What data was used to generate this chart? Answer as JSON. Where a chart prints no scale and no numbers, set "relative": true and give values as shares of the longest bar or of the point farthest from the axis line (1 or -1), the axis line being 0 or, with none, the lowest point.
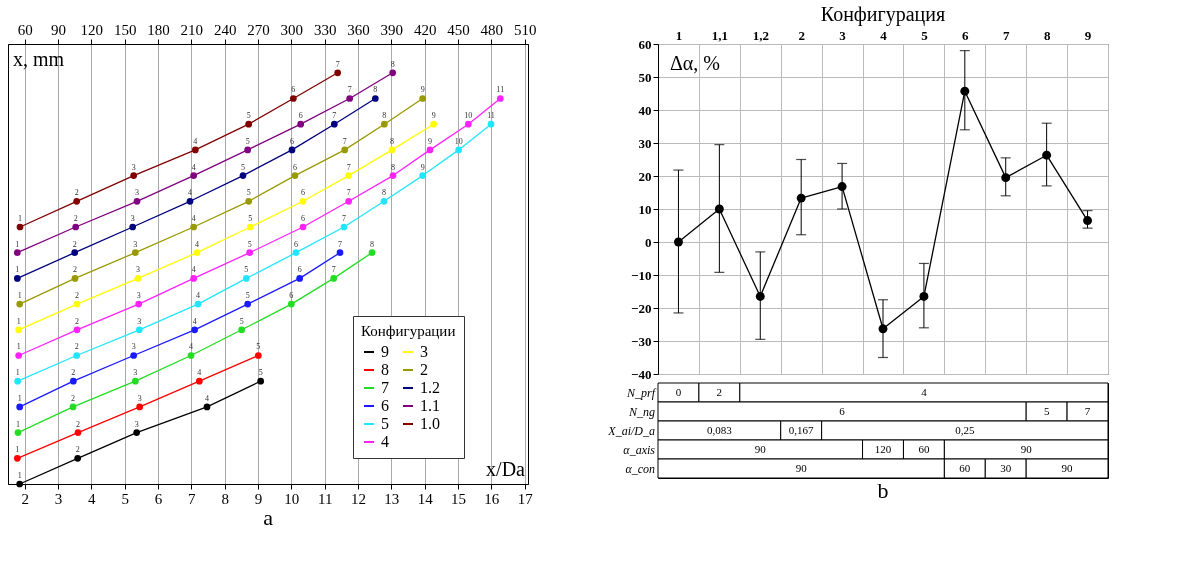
{
  "chart_data": [
    {
      "type": "line",
      "relative": true,
      "xlabel": "x/Da",
      "ylabel": "x, mm",
      "legend_title": "Конфигурации",
      "legend": "bottom right",
      "grid": "x",
      "marker": "circle",
      "line_style": "solid",
      "xlim": [
        1.5,
        17.1
      ],
      "xticks": [
        2,
        3,
        4,
        5,
        6,
        7,
        8,
        9,
        10,
        11,
        12,
        13,
        14,
        15,
        16,
        17
      ],
      "x2lim": [
        45,
        513
      ],
      "x2ticks": [
        60,
        90,
        120,
        150,
        180,
        210,
        240,
        270,
        300,
        330,
        360,
        390,
        420,
        450,
        480,
        510
      ],
      "annotations": [
        "a",
        {
          "text": "1",
          "x": 1.85,
          "y": 0
        },
        {
          "text": "2",
          "x": 3.59,
          "y": 0.0625
        },
        {
          "text": "3",
          "x": 5.36,
          "y": 0.125
        },
        {
          "text": "4",
          "x": 7.47,
          "y": 0.1875
        },
        {
          "text": "5",
          "x": 9.08,
          "y": 0.25
        },
        {
          "text": "1",
          "x": 1.78,
          "y": 0.0625
        },
        {
          "text": "2",
          "x": 3.6,
          "y": 0.125
        },
        {
          "text": "3",
          "x": 5.45,
          "y": 0.1875
        },
        {
          "text": "4",
          "x": 7.24,
          "y": 0.25
        },
        {
          "text": "5",
          "x": 9.01,
          "y": 0.3125
        },
        {
          "text": "1",
          "x": 1.8,
          "y": 0.125
        },
        {
          "text": "2",
          "x": 3.45,
          "y": 0.1875
        },
        {
          "text": "3",
          "x": 5.32,
          "y": 0.25
        },
        {
          "text": "4",
          "x": 6.99,
          "y": 0.3125
        },
        {
          "text": "5",
          "x": 8.51,
          "y": 0.375
        },
        {
          "text": "6",
          "x": 10.0,
          "y": 0.4375
        },
        {
          "text": "7",
          "x": 11.27,
          "y": 0.5
        },
        {
          "text": "8",
          "x": 12.42,
          "y": 0.5625
        },
        {
          "text": "1",
          "x": 1.85,
          "y": 0.1875
        },
        {
          "text": "2",
          "x": 3.46,
          "y": 0.25
        },
        {
          "text": "3",
          "x": 5.27,
          "y": 0.3125
        },
        {
          "text": "4",
          "x": 7.1,
          "y": 0.375
        },
        {
          "text": "5",
          "x": 8.69,
          "y": 0.4375
        },
        {
          "text": "6",
          "x": 10.25,
          "y": 0.5
        },
        {
          "text": "7",
          "x": 11.46,
          "y": 0.5625
        },
        {
          "text": "1",
          "x": 1.79,
          "y": 0.25
        },
        {
          "text": "2",
          "x": 3.56,
          "y": 0.3125
        },
        {
          "text": "3",
          "x": 5.44,
          "y": 0.375
        },
        {
          "text": "4",
          "x": 7.2,
          "y": 0.4375
        },
        {
          "text": "5",
          "x": 8.65,
          "y": 0.5
        },
        {
          "text": "6",
          "x": 10.14,
          "y": 0.5625
        },
        {
          "text": "7",
          "x": 11.58,
          "y": 0.625
        },
        {
          "text": "8",
          "x": 12.78,
          "y": 0.6875
        },
        {
          "text": "9",
          "x": 13.94,
          "y": 0.75
        },
        {
          "text": "10",
          "x": 15.02,
          "y": 0.8125
        },
        {
          "text": "11",
          "x": 15.99,
          "y": 0.875
        },
        {
          "text": "1",
          "x": 1.82,
          "y": 0.3125
        },
        {
          "text": "2",
          "x": 3.57,
          "y": 0.375
        },
        {
          "text": "3",
          "x": 5.42,
          "y": 0.4375
        },
        {
          "text": "4",
          "x": 7.07,
          "y": 0.5
        },
        {
          "text": "5",
          "x": 8.75,
          "y": 0.5625
        },
        {
          "text": "6",
          "x": 10.35,
          "y": 0.625
        },
        {
          "text": "7",
          "x": 11.72,
          "y": 0.6875
        },
        {
          "text": "8",
          "x": 13.05,
          "y": 0.75
        },
        {
          "text": "9",
          "x": 14.16,
          "y": 0.8125
        },
        {
          "text": "10",
          "x": 15.31,
          "y": 0.875
        },
        {
          "text": "11",
          "x": 16.27,
          "y": 0.9375
        },
        {
          "text": "1",
          "x": 1.82,
          "y": 0.375
        },
        {
          "text": "2",
          "x": 3.57,
          "y": 0.4375
        },
        {
          "text": "3",
          "x": 5.4,
          "y": 0.5
        },
        {
          "text": "4",
          "x": 7.17,
          "y": 0.5625
        },
        {
          "text": "5",
          "x": 8.77,
          "y": 0.625
        },
        {
          "text": "6",
          "x": 10.35,
          "y": 0.6875
        },
        {
          "text": "7",
          "x": 11.72,
          "y": 0.75
        },
        {
          "text": "8",
          "x": 13.02,
          "y": 0.8125
        },
        {
          "text": "9",
          "x": 14.27,
          "y": 0.875
        },
        {
          "text": "1",
          "x": 1.85,
          "y": 0.4375
        },
        {
          "text": "2",
          "x": 3.51,
          "y": 0.5
        },
        {
          "text": "3",
          "x": 5.32,
          "y": 0.5625
        },
        {
          "text": "4",
          "x": 7.07,
          "y": 0.625
        },
        {
          "text": "5",
          "x": 8.72,
          "y": 0.6875
        },
        {
          "text": "6",
          "x": 10.11,
          "y": 0.75
        },
        {
          "text": "7",
          "x": 11.6,
          "y": 0.8125
        },
        {
          "text": "8",
          "x": 12.79,
          "y": 0.875
        },
        {
          "text": "9",
          "x": 13.94,
          "y": 0.9375
        },
        {
          "text": "1",
          "x": 1.78,
          "y": 0.5
        },
        {
          "text": "2",
          "x": 3.5,
          "y": 0.5625
        },
        {
          "text": "3",
          "x": 5.24,
          "y": 0.625
        },
        {
          "text": "4",
          "x": 6.96,
          "y": 0.6875
        },
        {
          "text": "5",
          "x": 8.55,
          "y": 0.75
        },
        {
          "text": "6",
          "x": 10.02,
          "y": 0.8125
        },
        {
          "text": "7",
          "x": 11.29,
          "y": 0.875
        },
        {
          "text": "8",
          "x": 12.52,
          "y": 0.9375
        },
        {
          "text": "1",
          "x": 1.78,
          "y": 0.5625
        },
        {
          "text": "2",
          "x": 3.53,
          "y": 0.625
        },
        {
          "text": "3",
          "x": 5.37,
          "y": 0.6875
        },
        {
          "text": "4",
          "x": 7.07,
          "y": 0.75
        },
        {
          "text": "5",
          "x": 8.69,
          "y": 0.8125
        },
        {
          "text": "6",
          "x": 10.28,
          "y": 0.875
        },
        {
          "text": "7",
          "x": 11.75,
          "y": 0.9375
        },
        {
          "text": "8",
          "x": 13.04,
          "y": 1
        },
        {
          "text": "1",
          "x": 1.86,
          "y": 0.625
        },
        {
          "text": "2",
          "x": 3.56,
          "y": 0.6875
        },
        {
          "text": "3",
          "x": 5.27,
          "y": 0.75
        },
        {
          "text": "4",
          "x": 7.12,
          "y": 0.8125
        },
        {
          "text": "5",
          "x": 8.72,
          "y": 0.875
        },
        {
          "text": "6",
          "x": 10.06,
          "y": 0.9375
        },
        {
          "text": "7",
          "x": 11.39,
          "y": 1
        }
      ],
      "series": [
        {
          "name": "9",
          "color": "#000000",
          "x": [
            1.85,
            3.59,
            5.36,
            7.47,
            9.08
          ],
          "values": [
            0,
            0.0625,
            0.125,
            0.1875,
            0.25
          ]
        },
        {
          "name": "8",
          "color": "#ff0000",
          "x": [
            1.78,
            3.6,
            5.45,
            7.24,
            9.01
          ],
          "values": [
            0.0625,
            0.125,
            0.1875,
            0.25,
            0.3125
          ]
        },
        {
          "name": "7",
          "color": "#22dd22",
          "x": [
            1.8,
            3.45,
            5.32,
            6.99,
            8.51,
            10.0,
            11.27,
            12.42
          ],
          "values": [
            0.125,
            0.1875,
            0.25,
            0.3125,
            0.375,
            0.4375,
            0.5,
            0.5625
          ]
        },
        {
          "name": "6",
          "color": "#1a1aff",
          "x": [
            1.85,
            3.46,
            5.27,
            7.1,
            8.69,
            10.25,
            11.46
          ],
          "values": [
            0.1875,
            0.25,
            0.3125,
            0.375,
            0.4375,
            0.5,
            0.5625
          ]
        },
        {
          "name": "5",
          "color": "#22e5ff",
          "x": [
            1.79,
            3.56,
            5.44,
            7.2,
            8.65,
            10.14,
            11.58,
            12.78,
            13.94,
            15.02,
            15.99
          ],
          "values": [
            0.25,
            0.3125,
            0.375,
            0.4375,
            0.5,
            0.5625,
            0.625,
            0.6875,
            0.75,
            0.8125,
            0.875
          ]
        },
        {
          "name": "4",
          "color": "#ff22ff",
          "x": [
            1.82,
            3.57,
            5.42,
            7.07,
            8.75,
            10.35,
            11.72,
            13.05,
            14.16,
            15.31,
            16.27
          ],
          "values": [
            0.3125,
            0.375,
            0.4375,
            0.5,
            0.5625,
            0.625,
            0.6875,
            0.75,
            0.8125,
            0.875,
            0.9375
          ]
        },
        {
          "name": "3",
          "color": "#ffff00",
          "x": [
            1.82,
            3.57,
            5.4,
            7.17,
            8.77,
            10.35,
            11.72,
            13.02,
            14.27
          ],
          "values": [
            0.375,
            0.4375,
            0.5,
            0.5625,
            0.625,
            0.6875,
            0.75,
            0.8125,
            0.875
          ]
        },
        {
          "name": "2",
          "color": "#999900",
          "x": [
            1.85,
            3.51,
            5.32,
            7.07,
            8.72,
            10.11,
            11.6,
            12.79,
            13.94
          ],
          "values": [
            0.4375,
            0.5,
            0.5625,
            0.625,
            0.6875,
            0.75,
            0.8125,
            0.875,
            0.9375
          ]
        },
        {
          "name": "1.2",
          "color": "#00007f",
          "x": [
            1.78,
            3.5,
            5.24,
            6.96,
            8.55,
            10.02,
            11.29,
            12.52
          ],
          "values": [
            0.5,
            0.5625,
            0.625,
            0.6875,
            0.75,
            0.8125,
            0.875,
            0.9375
          ]
        },
        {
          "name": "1.1",
          "color": "#800080",
          "x": [
            1.78,
            3.53,
            5.37,
            7.07,
            8.69,
            10.28,
            11.75,
            13.04
          ],
          "values": [
            0.5625,
            0.625,
            0.6875,
            0.75,
            0.8125,
            0.875,
            0.9375,
            1
          ]
        },
        {
          "name": "1.0",
          "color": "#800000",
          "x": [
            1.86,
            3.56,
            5.27,
            7.12,
            8.72,
            10.06,
            11.39
          ],
          "values": [
            0.625,
            0.6875,
            0.75,
            0.8125,
            0.875,
            0.9375,
            1
          ]
        }
      ]
    },
    {
      "type": "line",
      "title": "Конфигурация",
      "ylabel": "Δα, %",
      "categories": [
        "1",
        "1,1",
        "1,2",
        "2",
        "3",
        "4",
        "5",
        "6",
        "7",
        "8",
        "9"
      ],
      "ylim": [
        -40,
        60
      ],
      "yticks": [
        -40,
        -30,
        -20,
        -10,
        0,
        10,
        20,
        30,
        40,
        50,
        60
      ],
      "grid": true,
      "marker": "circle",
      "line_style": "solid",
      "legend": false,
      "series": [
        {
          "color": "#000000",
          "values": [
            0,
            10,
            -16.5,
            13.3,
            16.8,
            -26.3,
            -16.5,
            45.7,
            19.5,
            26.3,
            6.5
          ],
          "errors": [
            [
              -21.5,
              21.8
            ],
            [
              -9.2,
              29.5
            ],
            [
              -29.5,
              -3
            ],
            [
              2.2,
              25
            ],
            [
              10,
              23.8
            ],
            [
              -35,
              -17.5
            ],
            [
              -26,
              -6.5
            ],
            [
              34,
              58
            ],
            [
              14,
              25.5
            ],
            [
              17,
              36
            ],
            [
              4.2,
              9.5
            ]
          ]
        }
      ],
      "annotations": [
        "N_prf",
        "0",
        "2",
        "4",
        "N_ng",
        "6",
        "5",
        "7",
        "X_ai/D_a",
        "0,083",
        "0,167",
        "0,25",
        "α_axis",
        "90",
        "120",
        "60",
        "90",
        "α_con",
        "90",
        "60",
        "30",
        "90",
        "b"
      ]
    }
  ]
}
